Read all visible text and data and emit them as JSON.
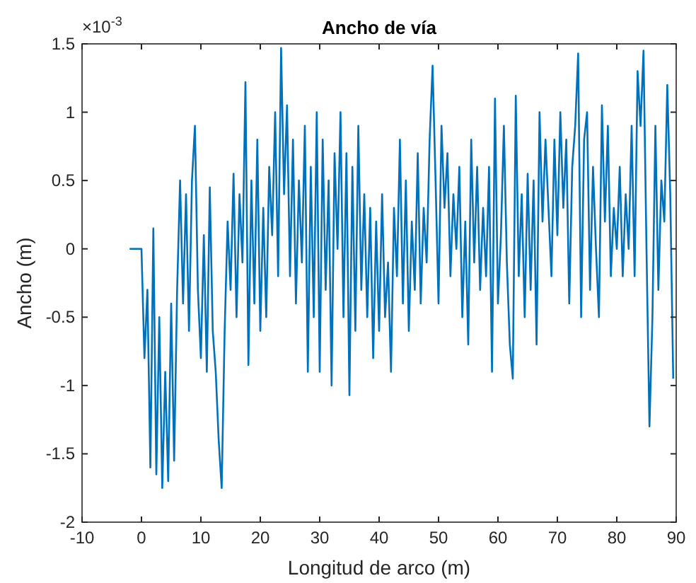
{
  "chart_data": {
    "type": "line",
    "title": "Ancho de vía",
    "xlabel": "Longitud de arco (m)",
    "ylabel": "Ancho (m)",
    "annotations": [
      "×10$^{-3}$"
    ],
    "xlim": [
      -10,
      90
    ],
    "xticks": [
      -10,
      0,
      10,
      20,
      30,
      40,
      50,
      60,
      70,
      80,
      90
    ],
    "ylim": [
      -2,
      1.5
    ],
    "yticks": [
      -2,
      -1.5,
      -1,
      -0.5,
      0,
      0.5,
      1,
      1.5
    ],
    "grid": false,
    "marker": "none",
    "line_style": "solid",
    "series": [
      {
        "color": "#0072bd",
        "x": [
          -2,
          0,
          0.5,
          1,
          1.5,
          2,
          2.5,
          3,
          3.5,
          4,
          4.5,
          5,
          5.5,
          6,
          6.5,
          7,
          7.5,
          8,
          8.5,
          9,
          9.5,
          10,
          10.5,
          11,
          11.5,
          12,
          12.5,
          13,
          13.5,
          14,
          14.5,
          15,
          15.5,
          16,
          16.5,
          17,
          17.5,
          18,
          18.5,
          19,
          19.5,
          20,
          20.5,
          21,
          21.5,
          22,
          22.5,
          23,
          23.5,
          24,
          24.5,
          25,
          25.5,
          26,
          26.5,
          27,
          27.5,
          28,
          28.5,
          29,
          29.5,
          30,
          30.5,
          31,
          31.5,
          32,
          32.5,
          33,
          33.5,
          34,
          34.5,
          35,
          35.5,
          36,
          36.5,
          37,
          37.5,
          38,
          38.5,
          39,
          39.5,
          40,
          40.5,
          41,
          41.5,
          42,
          42.5,
          43,
          43.5,
          44,
          44.5,
          45,
          45.5,
          46,
          46.5,
          47,
          47.5,
          48,
          48.5,
          49,
          49.5,
          50,
          50.5,
          51,
          51.5,
          52,
          52.5,
          53,
          53.5,
          54,
          54.5,
          55,
          55.5,
          56,
          56.5,
          57,
          57.5,
          58,
          58.5,
          59,
          59.5,
          60,
          60.5,
          61,
          61.5,
          62,
          62.5,
          63,
          63.5,
          64,
          64.5,
          65,
          65.5,
          66,
          66.5,
          67,
          67.5,
          68,
          68.5,
          69,
          69.5,
          70,
          70.5,
          71,
          71.5,
          72,
          72.5,
          73,
          73.5,
          74,
          74.5,
          75,
          75.5,
          76,
          76.5,
          77,
          77.5,
          78,
          78.5,
          79,
          79.5,
          80,
          80.5,
          81,
          81.5,
          82,
          82.5,
          83,
          83.5,
          84,
          84.5,
          85,
          85.5,
          86,
          86.5,
          87,
          87.5,
          88,
          88.5,
          89,
          89.5
        ],
        "values": [
          0,
          0,
          -0.8,
          -0.3,
          -1.6,
          0.15,
          -1.65,
          -0.5,
          -1.75,
          -0.9,
          -1.7,
          -0.4,
          -1.55,
          -0.3,
          0.5,
          -0.4,
          0.4,
          -0.6,
          0.5,
          0.9,
          -0.3,
          -0.8,
          0.1,
          -0.9,
          0.45,
          -0.6,
          -0.9,
          -1.4,
          -1.75,
          -0.6,
          0.2,
          -0.3,
          0.55,
          -0.5,
          0.4,
          -0.1,
          1.22,
          -0.85,
          0.5,
          -0.4,
          0.8,
          -0.6,
          0.3,
          -0.5,
          0.6,
          0.1,
          1.0,
          -0.2,
          1.47,
          0.4,
          1.05,
          -0.2,
          0.8,
          -0.4,
          0.5,
          -0.1,
          0.9,
          -0.9,
          0.6,
          -0.5,
          1.0,
          -0.9,
          0.8,
          -0.3,
          0.5,
          -1.0,
          0.7,
          0.0,
          1.0,
          -0.5,
          0.7,
          -1.07,
          0.6,
          -0.6,
          0.9,
          -0.3,
          0.4,
          -0.5,
          0.3,
          -0.8,
          0.2,
          -0.6,
          0.4,
          -0.5,
          -0.1,
          -0.9,
          0.3,
          -0.2,
          0.8,
          -0.4,
          0.5,
          -0.6,
          0.2,
          -0.3,
          0.7,
          -0.4,
          0.3,
          -0.1,
          0.8,
          1.34,
          0.5,
          -0.4,
          0.9,
          0.3,
          0.7,
          -0.2,
          0.4,
          0.0,
          0.6,
          -0.5,
          0.2,
          -0.7,
          0.8,
          -0.1,
          0.6,
          -0.3,
          0.3,
          -0.2,
          0.6,
          -0.9,
          1.1,
          -0.4,
          0.1,
          0.9,
          -0.1,
          -0.7,
          -0.95,
          1.12,
          -0.2,
          0.4,
          -0.5,
          0.55,
          -0.3,
          0.5,
          -0.7,
          1.0,
          0.2,
          0.8,
          0.3,
          -0.2,
          0.8,
          0.1,
          1.0,
          0.3,
          0.8,
          -0.4,
          0.6,
          0.9,
          1.43,
          -0.5,
          0.8,
          1.0,
          -0.3,
          0.6,
          0.0,
          -0.5,
          1.05,
          0.2,
          0.9,
          -0.2,
          0.3,
          0.0,
          0.6,
          -0.2,
          0.4,
          0.0,
          0.9,
          -0.2,
          1.3,
          0.9,
          1.45,
          0.0,
          -1.3,
          -0.5,
          0.9,
          -0.3,
          0.5,
          0.2,
          1.2,
          0.4,
          -0.95
        ]
      }
    ]
  }
}
